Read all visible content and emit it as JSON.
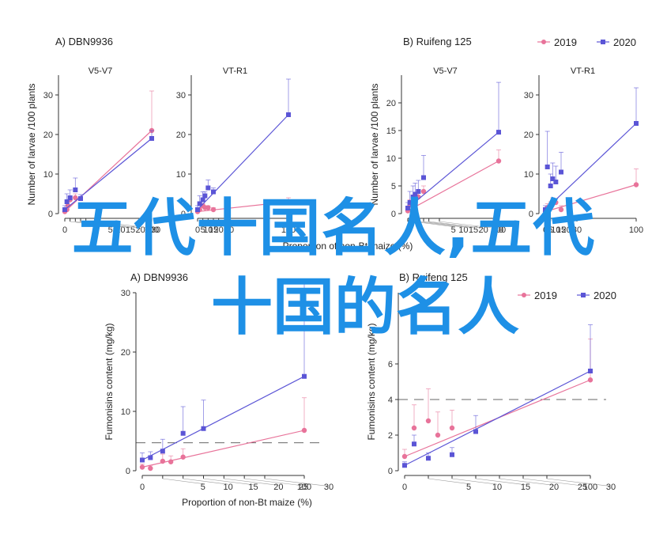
{
  "legend": {
    "series": [
      {
        "name": "2019",
        "color": "#e8739a",
        "marker": "circle"
      },
      {
        "name": "2020",
        "color": "#5b55d6",
        "marker": "square"
      }
    ]
  },
  "overlay": {
    "line1": "五代十国名人,五代",
    "line2": "十国的名人"
  },
  "chart_data": [
    {
      "type": "line",
      "panel": "A) DBN9936",
      "title": "V5-V7",
      "ylabel": "Number of larvae /100 plants",
      "xlabel": "",
      "ylim": [
        0,
        35
      ],
      "yticks": [
        0,
        10,
        20,
        30
      ],
      "xticks": [
        0,
        5,
        10,
        15,
        20,
        30,
        100
      ],
      "series": [
        {
          "name": "2019",
          "x": [
            0,
            2,
            3,
            5,
            10,
            100
          ],
          "y": [
            0.5,
            1,
            2,
            3.5,
            4,
            21
          ],
          "err": [
            0.5,
            1,
            1,
            1,
            1,
            10
          ]
        },
        {
          "name": "2020",
          "x": [
            0,
            2,
            5,
            10,
            15,
            100
          ],
          "y": [
            1,
            3,
            4,
            6,
            3.8,
            19
          ],
          "err": [
            1,
            2,
            2,
            3,
            1,
            2
          ]
        }
      ]
    },
    {
      "type": "line",
      "panel": "",
      "title": "VT-R1",
      "ylabel": "",
      "xlabel": "Proportion of non-Bt maize (%)",
      "ylim": [
        0,
        35
      ],
      "yticks": [
        0,
        10,
        20,
        30
      ],
      "xticks": [
        0,
        5,
        10,
        15,
        20,
        30,
        100
      ],
      "series": [
        {
          "name": "2019",
          "x": [
            0,
            2,
            5,
            7,
            10,
            15,
            100
          ],
          "y": [
            0.5,
            1,
            2,
            1.5,
            1.5,
            1,
            3
          ],
          "err": [
            0.5,
            0.5,
            0.5,
            0.5,
            0.5,
            0.5,
            1
          ]
        },
        {
          "name": "2020",
          "x": [
            0,
            2,
            5,
            7,
            10,
            15,
            100
          ],
          "y": [
            1,
            2.5,
            3.5,
            4.5,
            6.5,
            5.5,
            25
          ],
          "err": [
            1,
            2,
            2,
            1,
            2,
            1,
            9
          ]
        }
      ]
    },
    {
      "type": "line",
      "panel": "B) Ruifeng 125",
      "title": "V5-V7",
      "ylabel": "Number of larvae /100 plants",
      "xlabel": "",
      "ylim": [
        0,
        25
      ],
      "yticks": [
        0,
        5,
        10,
        15,
        20
      ],
      "xticks": [
        0,
        5,
        10,
        15,
        20,
        30,
        100
      ],
      "series": [
        {
          "name": "2019",
          "x": [
            0,
            2,
            5,
            7,
            10,
            15,
            100
          ],
          "y": [
            0.5,
            1.5,
            2,
            2.5,
            3,
            4,
            9.5
          ],
          "err": [
            0.5,
            1,
            1,
            1,
            1,
            1,
            2
          ]
        },
        {
          "name": "2020",
          "x": [
            0,
            2,
            5,
            7,
            10,
            15,
            100
          ],
          "y": [
            1,
            2,
            3,
            3.5,
            4,
            6.5,
            14.7
          ],
          "err": [
            1,
            2,
            2,
            2,
            2,
            4,
            9
          ]
        }
      ]
    },
    {
      "type": "line",
      "panel": "",
      "title": "VT-R1",
      "ylabel": "",
      "xlabel": "",
      "ylim": [
        0,
        35
      ],
      "yticks": [
        0,
        10,
        20,
        30
      ],
      "xticks": [
        0,
        5,
        10,
        15,
        20,
        30,
        100
      ],
      "series": [
        {
          "name": "2019",
          "x": [
            0,
            2,
            5,
            7,
            10,
            15,
            100
          ],
          "y": [
            0.5,
            1.5,
            2,
            3,
            2.8,
            1,
            7.3
          ],
          "err": [
            0.5,
            1,
            1,
            1,
            1,
            1,
            4
          ]
        },
        {
          "name": "2020",
          "x": [
            0,
            2,
            5,
            7,
            10,
            15,
            100
          ],
          "y": [
            1,
            11.8,
            7,
            8.8,
            8,
            10.5,
            22.8
          ],
          "err": [
            1,
            9,
            3,
            4,
            4,
            5,
            9
          ]
        }
      ]
    },
    {
      "type": "line",
      "panel": "A) DBN9936",
      "title": "",
      "ylabel": "Fumonisins content (mg/kg)",
      "xlabel": "Proportion of non-Bt maize (%)",
      "ylim": [
        0,
        30
      ],
      "yticks": [
        0,
        10,
        20,
        30
      ],
      "xticks": [
        0,
        5,
        10,
        15,
        20,
        25,
        30,
        100
      ],
      "threshold": 4.7,
      "series": [
        {
          "name": "2019",
          "x": [
            0,
            2,
            5,
            7,
            10,
            100
          ],
          "y": [
            0.6,
            0.4,
            1.6,
            1.5,
            2.3,
            6.8
          ],
          "err": [
            0.5,
            0.5,
            1.2,
            1,
            1.4,
            5.5
          ]
        },
        {
          "name": "2020",
          "x": [
            0,
            2,
            5,
            10,
            15,
            100
          ],
          "y": [
            1.8,
            2.2,
            3.3,
            6.3,
            7.1,
            15.9
          ],
          "err": [
            1.2,
            1,
            2,
            4.5,
            4.8,
            16
          ]
        }
      ]
    },
    {
      "type": "line",
      "panel": "B) Ruifeng 125",
      "title": "",
      "ylabel": "Fumonisins content (mg/kg)",
      "xlabel": "",
      "ylim": [
        0,
        10
      ],
      "yticks": [
        0,
        2,
        4,
        6
      ],
      "xticks": [
        0,
        5,
        10,
        15,
        20,
        25,
        30,
        100
      ],
      "threshold": 4,
      "series": [
        {
          "name": "2019",
          "x": [
            0,
            2,
            5,
            7,
            10,
            100
          ],
          "y": [
            0.8,
            2.4,
            2.8,
            2,
            2.4,
            5.1
          ],
          "err": [
            0.4,
            1.3,
            1.8,
            1.3,
            1,
            2.3
          ]
        },
        {
          "name": "2020",
          "x": [
            0,
            2,
            5,
            10,
            15,
            100
          ],
          "y": [
            0.3,
            1.5,
            0.7,
            0.9,
            2.2,
            5.6
          ],
          "err": [
            0.2,
            0.5,
            0.3,
            0.4,
            0.9,
            2.6
          ]
        }
      ]
    }
  ]
}
